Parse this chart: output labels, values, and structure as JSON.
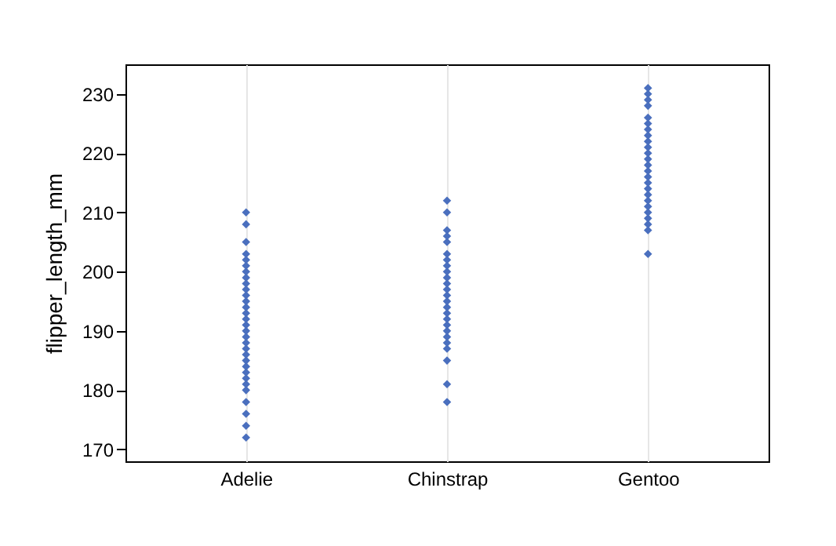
{
  "chart_data": {
    "type": "scatter",
    "ylabel": "flipper_length_mm",
    "categories": [
      "Adelie",
      "Chinstrap",
      "Gentoo"
    ],
    "ylim": [
      168,
      235
    ],
    "yticks": [
      170,
      180,
      190,
      200,
      210,
      220,
      230
    ],
    "grid": "x",
    "marker": "diamond",
    "series": [
      {
        "color": "#4a6fbe",
        "x": [
          "Adelie",
          "Adelie",
          "Adelie",
          "Adelie",
          "Adelie",
          "Adelie",
          "Adelie",
          "Adelie",
          "Adelie",
          "Adelie",
          "Adelie",
          "Adelie",
          "Adelie",
          "Adelie",
          "Adelie",
          "Adelie",
          "Adelie",
          "Adelie",
          "Adelie",
          "Adelie",
          "Adelie",
          "Adelie",
          "Adelie",
          "Adelie",
          "Adelie",
          "Adelie",
          "Adelie",
          "Adelie",
          "Adelie",
          "Adelie",
          "Adelie",
          "Chinstrap",
          "Chinstrap",
          "Chinstrap",
          "Chinstrap",
          "Chinstrap",
          "Chinstrap",
          "Chinstrap",
          "Chinstrap",
          "Chinstrap",
          "Chinstrap",
          "Chinstrap",
          "Chinstrap",
          "Chinstrap",
          "Chinstrap",
          "Chinstrap",
          "Chinstrap",
          "Chinstrap",
          "Chinstrap",
          "Chinstrap",
          "Chinstrap",
          "Chinstrap",
          "Chinstrap",
          "Chinstrap",
          "Chinstrap",
          "Chinstrap",
          "Gentoo",
          "Gentoo",
          "Gentoo",
          "Gentoo",
          "Gentoo",
          "Gentoo",
          "Gentoo",
          "Gentoo",
          "Gentoo",
          "Gentoo",
          "Gentoo",
          "Gentoo",
          "Gentoo",
          "Gentoo",
          "Gentoo",
          "Gentoo",
          "Gentoo",
          "Gentoo",
          "Gentoo",
          "Gentoo",
          "Gentoo",
          "Gentoo",
          "Gentoo",
          "Gentoo",
          "Gentoo"
        ],
        "values": [
          172,
          174,
          176,
          178,
          180,
          181,
          182,
          183,
          184,
          185,
          186,
          187,
          188,
          189,
          190,
          191,
          192,
          193,
          194,
          195,
          196,
          197,
          198,
          199,
          200,
          201,
          202,
          203,
          205,
          208,
          210,
          178,
          181,
          185,
          187,
          188,
          189,
          190,
          191,
          192,
          193,
          194,
          195,
          196,
          197,
          198,
          199,
          200,
          201,
          202,
          203,
          205,
          206,
          207,
          210,
          212,
          203,
          207,
          208,
          209,
          210,
          211,
          212,
          213,
          214,
          215,
          216,
          217,
          218,
          219,
          220,
          221,
          222,
          223,
          224,
          225,
          226,
          228,
          229,
          230,
          231
        ]
      }
    ]
  }
}
